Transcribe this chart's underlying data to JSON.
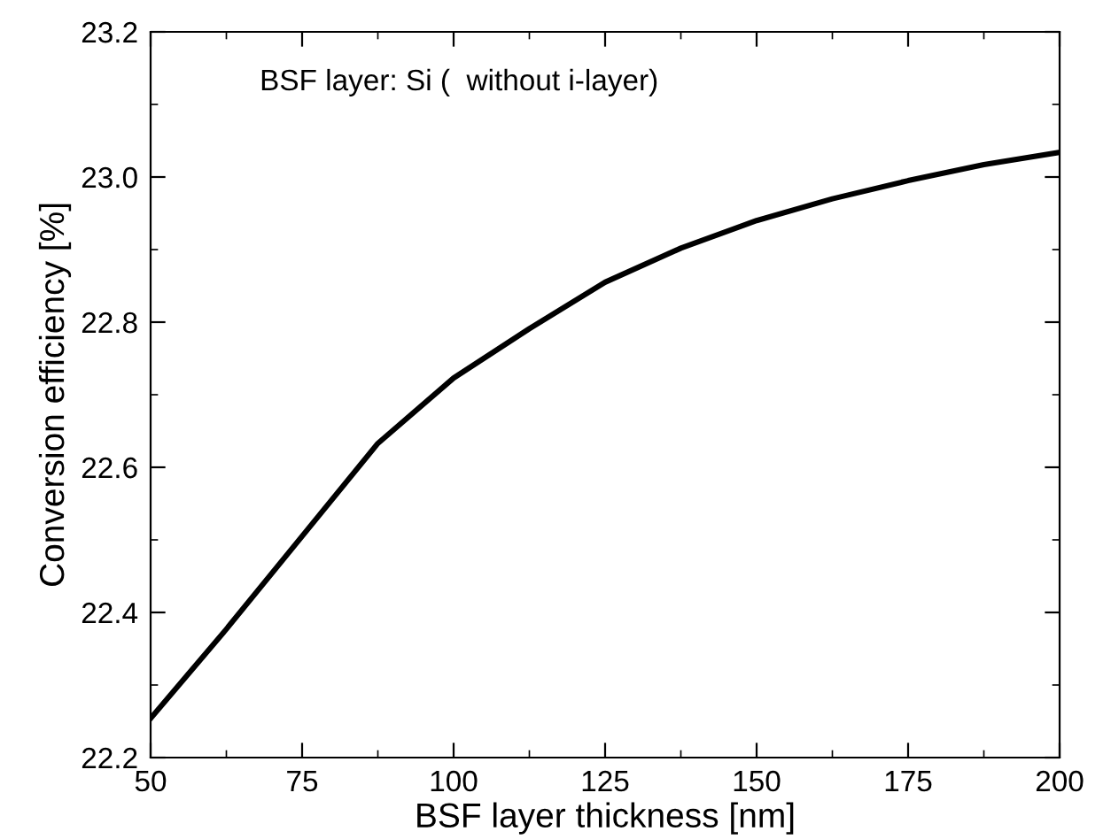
{
  "chart_data": {
    "type": "line",
    "xlabel": "BSF layer thickness [nm]",
    "ylabel": "Conversion efficiency [%]",
    "annotations": [
      "BSF layer: Si (  without i-layer)"
    ],
    "x": [
      50,
      62.5,
      75,
      87.5,
      100,
      112.5,
      125,
      137.5,
      150,
      162.5,
      175,
      187.5,
      200
    ],
    "series": [
      {
        "color": "#000000",
        "values": [
          22.254,
          22.377,
          22.505,
          22.633,
          22.723,
          22.791,
          22.855,
          22.902,
          22.94,
          22.97,
          22.995,
          23.017,
          23.034
        ]
      }
    ],
    "xlim": [
      50,
      200
    ],
    "xticks": [
      50,
      75,
      100,
      125,
      150,
      175,
      200
    ],
    "ylim": [
      22.2,
      23.2
    ],
    "yticks": [
      {
        "value": 22.2,
        "label": "22.2"
      },
      {
        "value": 22.4,
        "label": "22.4"
      },
      {
        "value": 22.6,
        "label": "22.6"
      },
      {
        "value": 22.8,
        "label": "22.8"
      },
      {
        "value": 23.0,
        "label": "23.0"
      },
      {
        "value": 23.2,
        "label": "23.2"
      }
    ],
    "grid": false,
    "legend": false,
    "marker": "none",
    "line_style": "solid"
  }
}
